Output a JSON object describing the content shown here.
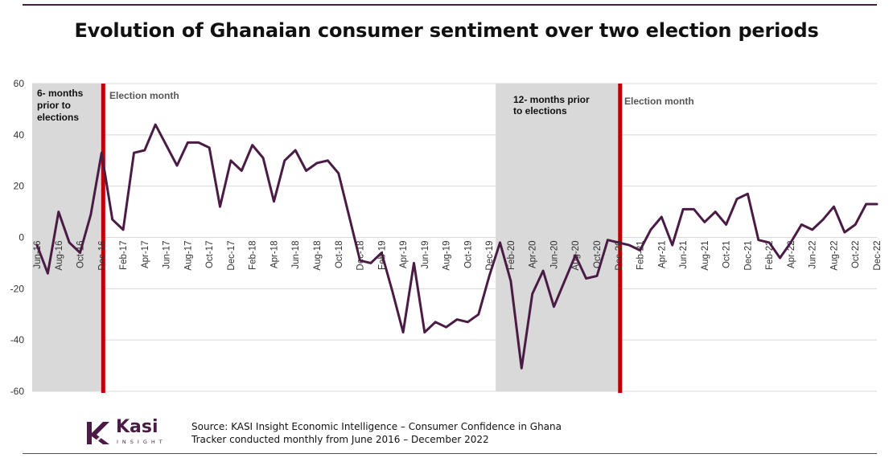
{
  "header": {
    "title": "Evolution of Ghanaian consumer sentiment over two election periods"
  },
  "footer": {
    "logo_text": "Kasi",
    "logo_sub": "INSIGHT",
    "source_line1": "Source: KASI Insight Economic Intelligence – Consumer Confidence in Ghana",
    "source_line2": "Tracker conducted monthly from June 2016 – December 2022"
  },
  "colors": {
    "line": "#4a1c45",
    "shade": "#d9d9d9",
    "election_marker": "#c00000",
    "grid": "#d9d9d9",
    "brand": "#4a1c45"
  },
  "chart_data": {
    "type": "line",
    "title": "Evolution of Ghanaian consumer sentiment over two election periods",
    "xlabel": "",
    "ylabel": "",
    "ylim": [
      -60,
      60
    ],
    "yticks": [
      60,
      40,
      20,
      0,
      -20,
      -40,
      -60
    ],
    "grid": true,
    "categories": [
      "Jun-16",
      "Jul-16",
      "Aug-16",
      "Sep-16",
      "Oct-16",
      "Nov-16",
      "Dec-16",
      "Jan-17",
      "Feb-17",
      "Mar-17",
      "Apr-17",
      "May-17",
      "Jun-17",
      "Jul-17",
      "Aug-17",
      "Sep-17",
      "Oct-17",
      "Nov-17",
      "Dec-17",
      "Jan-18",
      "Feb-18",
      "Mar-18",
      "Apr-18",
      "May-18",
      "Jun-18",
      "Jul-18",
      "Aug-18",
      "Sep-18",
      "Oct-18",
      "Nov-18",
      "Dec-18",
      "Jan-19",
      "Feb-19",
      "Mar-19",
      "Apr-19",
      "May-19",
      "Jun-19",
      "Jul-19",
      "Aug-19",
      "Sep-19",
      "Oct-19",
      "Nov-19",
      "Dec-19",
      "Jan-20",
      "Feb-20",
      "Mar-20",
      "Apr-20",
      "May-20",
      "Jun-20",
      "Jul-20",
      "Aug-20",
      "Sep-20",
      "Oct-20",
      "Nov-20",
      "Dec-20",
      "Jan-21",
      "Feb-21",
      "Mar-21",
      "Apr-21",
      "May-21",
      "Jun-21",
      "Jul-21",
      "Aug-21",
      "Sep-21",
      "Oct-21",
      "Nov-21",
      "Dec-21",
      "Jan-22",
      "Feb-22",
      "Mar-22",
      "Apr-22",
      "May-22",
      "Jun-22",
      "Jul-22",
      "Aug-22",
      "Sep-22",
      "Oct-22",
      "Nov-22",
      "Dec-22"
    ],
    "tick_labels": [
      "Jun-16",
      "Aug-16",
      "Oct-16",
      "Dec-16",
      "Feb-17",
      "Apr-17",
      "Jun-17",
      "Aug-17",
      "Oct-17",
      "Dec-17",
      "Feb-18",
      "Apr-18",
      "Jun-18",
      "Aug-18",
      "Oct-18",
      "Dec-18",
      "Feb-19",
      "Apr-19",
      "Jun-19",
      "Aug-19",
      "Oct-19",
      "Dec-19",
      "Feb-20",
      "Apr-20",
      "Jun-20",
      "Aug-20",
      "Oct-20",
      "Dec-20",
      "Feb-21",
      "Apr-21",
      "Jun-21",
      "Aug-21",
      "Oct-21",
      "Dec-21",
      "Feb-22",
      "Apr-22",
      "Jun-22",
      "Aug-22",
      "Oct-22",
      "Dec-22"
    ],
    "series": [
      {
        "name": "Consumer sentiment",
        "values": [
          -3,
          -14,
          10,
          -2,
          -6,
          9,
          33,
          7,
          3,
          33,
          34,
          44,
          36,
          28,
          37,
          37,
          35,
          12,
          30,
          26,
          36,
          31,
          14,
          30,
          34,
          26,
          29,
          30,
          25,
          8,
          -9,
          -10,
          -6,
          -21,
          -37,
          -10,
          -37,
          -33,
          -35,
          -32,
          -33,
          -30,
          -15,
          -2,
          -17,
          -51,
          -22,
          -13,
          -27,
          -17,
          -7,
          -16,
          -15,
          -1,
          -2,
          -3,
          -5,
          3,
          8,
          -3,
          11,
          11,
          6,
          10,
          5,
          15,
          17,
          -1,
          -2,
          -8,
          -2,
          5,
          3,
          7,
          12,
          2,
          5,
          13,
          13
        ]
      }
    ],
    "shaded_periods": [
      {
        "label": "6- months prior to elections",
        "start": "Jun-16",
        "end": "Dec-16"
      },
      {
        "label": "12- months prior to elections",
        "start": "Dec-19",
        "end": "Dec-20"
      }
    ],
    "election_markers": [
      {
        "label": "Election month",
        "at": "Dec-16"
      },
      {
        "label": "Election month",
        "at": "Dec-20"
      }
    ],
    "annotations": [
      "6- months prior to elections",
      "Election month",
      "12- months prior to elections",
      "Election month"
    ]
  }
}
